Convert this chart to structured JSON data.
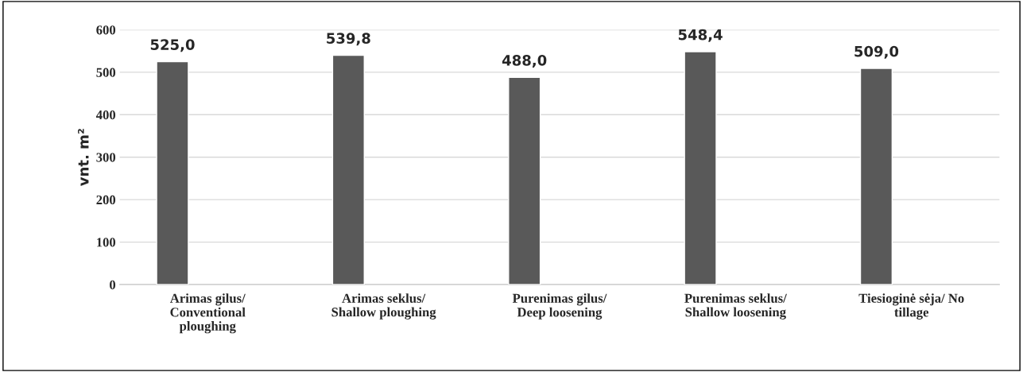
{
  "chart_data": {
    "type": "bar",
    "ylabel": "vnt. m²",
    "categories": [
      "Arimas gilus/\nConventional\nploughing",
      "Arimas seklus/\nShallow ploughing",
      "Purenimas gilus/\nDeep loosening",
      "Purenimas seklus/\nShallow loosening",
      "Tiesioginė sėja/ No\ntillage"
    ],
    "values": [
      525.0,
      539.8,
      488.0,
      548.4,
      509.0
    ],
    "value_labels": [
      "525,0",
      "539,8",
      "488,0",
      "548,4",
      "509,0"
    ],
    "color": "#595959",
    "ylim": [
      0,
      600
    ],
    "yticks": [
      0,
      100,
      200,
      300,
      400,
      500,
      600
    ],
    "grid": "y"
  }
}
